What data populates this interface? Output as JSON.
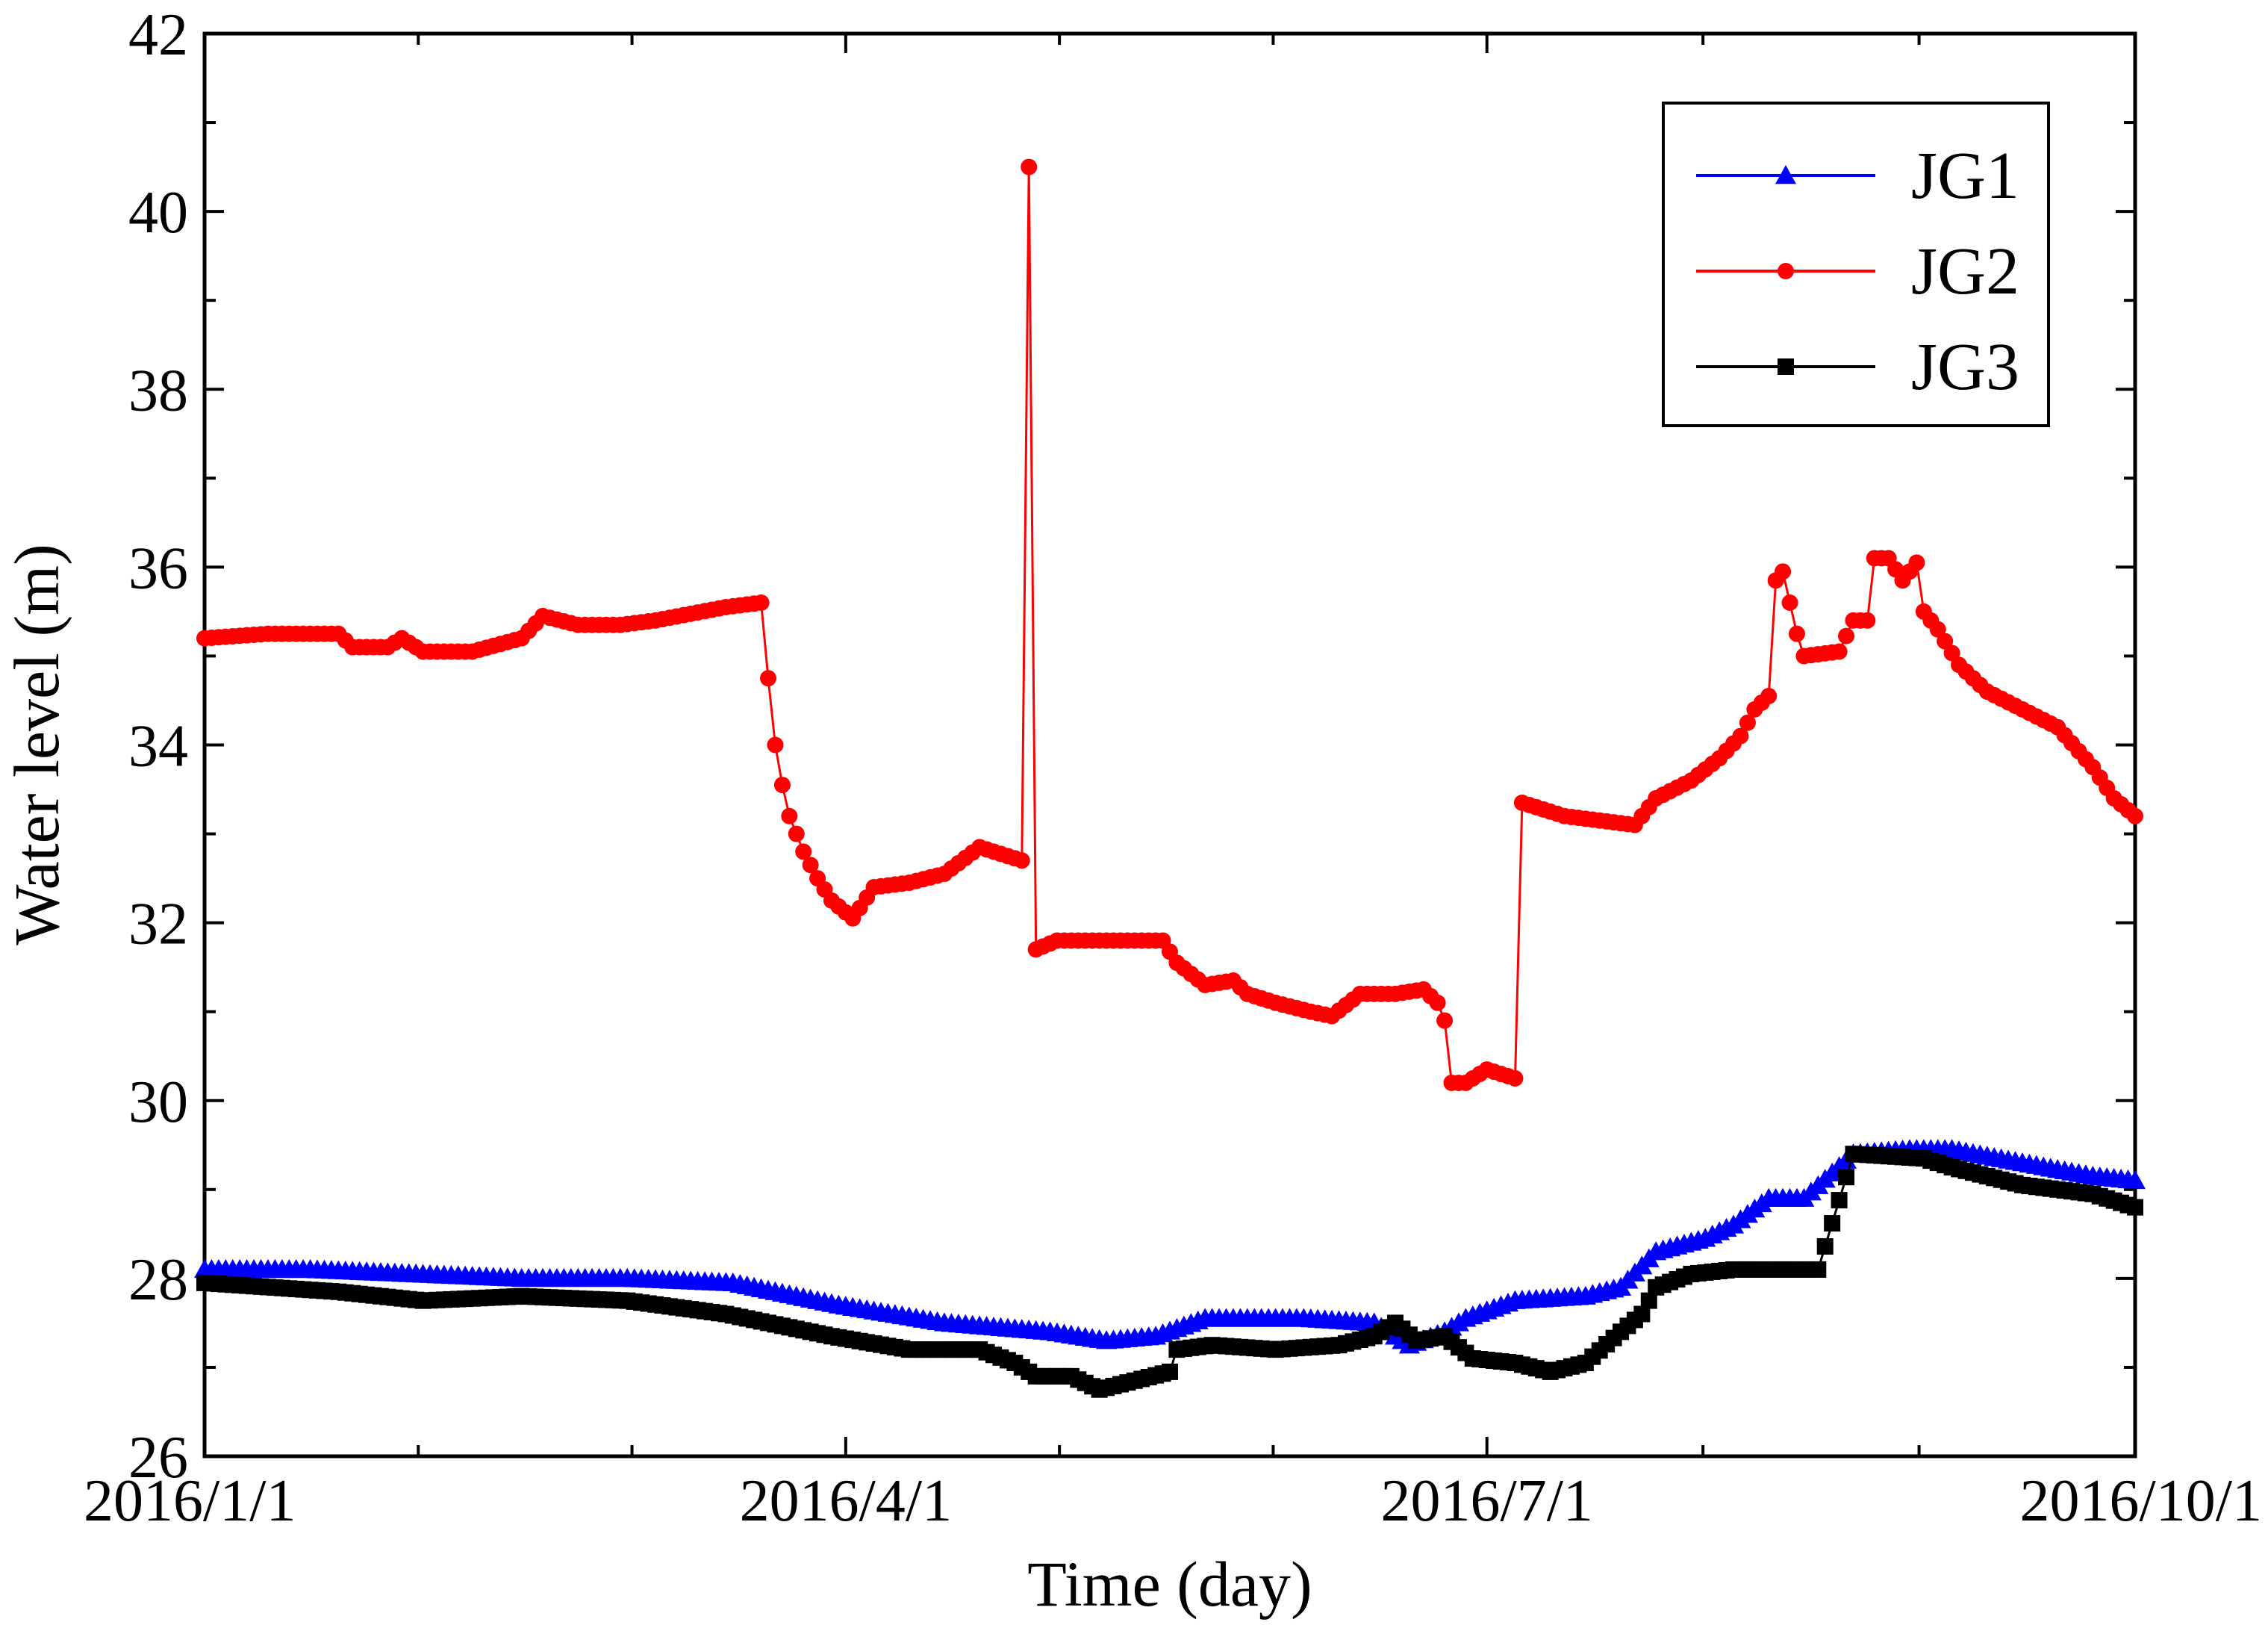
{
  "chart_data": {
    "type": "line",
    "title": "",
    "xlabel": "Time (day)",
    "ylabel": "Water level (m)",
    "x_ticks": [
      "2016/1/1",
      "2016/4/1",
      "2016/7/1",
      "2016/10/1"
    ],
    "xlim": [
      "2016-01-01",
      "2016-10-01"
    ],
    "ylim": [
      26,
      42
    ],
    "y_ticks": [
      "26",
      "28",
      "30",
      "32",
      "34",
      "36",
      "38",
      "40",
      "42"
    ],
    "grid": false,
    "legend_position": "top-right",
    "series": [
      {
        "name": "JG1",
        "color": "#0000ff",
        "marker": "triangle",
        "points": [
          [
            "2016-01-01",
            28.1
          ],
          [
            "2016-01-16",
            28.1
          ],
          [
            "2016-01-31",
            28.05
          ],
          [
            "2016-02-15",
            28.0
          ],
          [
            "2016-03-01",
            28.0
          ],
          [
            "2016-03-16",
            27.95
          ],
          [
            "2016-03-31",
            27.7
          ],
          [
            "2016-04-15",
            27.5
          ],
          [
            "2016-04-30",
            27.4
          ],
          [
            "2016-05-08",
            27.3
          ],
          [
            "2016-05-15",
            27.35
          ],
          [
            "2016-05-22",
            27.55
          ],
          [
            "2016-06-05",
            27.55
          ],
          [
            "2016-06-15",
            27.5
          ],
          [
            "2016-06-20",
            27.25
          ],
          [
            "2016-06-25",
            27.4
          ],
          [
            "2016-06-28",
            27.55
          ],
          [
            "2016-07-05",
            27.75
          ],
          [
            "2016-07-15",
            27.8
          ],
          [
            "2016-07-20",
            27.9
          ],
          [
            "2016-07-25",
            28.3
          ],
          [
            "2016-08-01",
            28.45
          ],
          [
            "2016-08-05",
            28.6
          ],
          [
            "2016-08-10",
            28.9
          ],
          [
            "2016-08-15",
            28.9
          ],
          [
            "2016-08-22",
            29.4
          ],
          [
            "2016-08-30",
            29.45
          ],
          [
            "2016-09-05",
            29.45
          ],
          [
            "2016-09-15",
            29.3
          ],
          [
            "2016-09-25",
            29.15
          ],
          [
            "2016-10-01",
            29.1
          ]
        ]
      },
      {
        "name": "JG2",
        "color": "#ff0000",
        "marker": "circle",
        "points": [
          [
            "2016-01-01",
            35.2
          ],
          [
            "2016-01-10",
            35.25
          ],
          [
            "2016-01-20",
            35.25
          ],
          [
            "2016-01-22",
            35.1
          ],
          [
            "2016-01-27",
            35.1
          ],
          [
            "2016-01-29",
            35.2
          ],
          [
            "2016-02-01",
            35.05
          ],
          [
            "2016-02-08",
            35.05
          ],
          [
            "2016-02-15",
            35.2
          ],
          [
            "2016-02-18",
            35.45
          ],
          [
            "2016-02-23",
            35.35
          ],
          [
            "2016-02-29",
            35.35
          ],
          [
            "2016-03-05",
            35.4
          ],
          [
            "2016-03-15",
            35.55
          ],
          [
            "2016-03-20",
            35.6
          ],
          [
            "2016-03-21",
            34.75
          ],
          [
            "2016-03-22",
            34.0
          ],
          [
            "2016-03-23",
            33.55
          ],
          [
            "2016-03-24",
            33.2
          ],
          [
            "2016-03-26",
            32.8
          ],
          [
            "2016-03-28",
            32.5
          ],
          [
            "2016-03-30",
            32.25
          ],
          [
            "2016-04-02",
            32.05
          ],
          [
            "2016-04-05",
            32.4
          ],
          [
            "2016-04-10",
            32.45
          ],
          [
            "2016-04-15",
            32.55
          ],
          [
            "2016-04-20",
            32.85
          ],
          [
            "2016-04-26",
            32.7
          ],
          [
            "2016-04-27",
            40.5
          ],
          [
            "2016-04-28",
            31.7
          ],
          [
            "2016-05-01",
            31.8
          ],
          [
            "2016-05-10",
            31.8
          ],
          [
            "2016-05-16",
            31.8
          ],
          [
            "2016-05-18",
            31.55
          ],
          [
            "2016-05-22",
            31.3
          ],
          [
            "2016-05-26",
            31.35
          ],
          [
            "2016-05-28",
            31.2
          ],
          [
            "2016-06-01",
            31.1
          ],
          [
            "2016-06-06",
            31.0
          ],
          [
            "2016-06-09",
            30.95
          ],
          [
            "2016-06-13",
            31.2
          ],
          [
            "2016-06-18",
            31.2
          ],
          [
            "2016-06-22",
            31.25
          ],
          [
            "2016-06-24",
            31.1
          ],
          [
            "2016-06-25",
            30.9
          ],
          [
            "2016-06-26",
            30.2
          ],
          [
            "2016-06-28",
            30.2
          ],
          [
            "2016-07-01",
            30.35
          ],
          [
            "2016-07-05",
            30.25
          ],
          [
            "2016-07-06",
            33.35
          ],
          [
            "2016-07-12",
            33.2
          ],
          [
            "2016-07-17",
            33.15
          ],
          [
            "2016-07-22",
            33.1
          ],
          [
            "2016-07-25",
            33.4
          ],
          [
            "2016-07-30",
            33.6
          ],
          [
            "2016-08-03",
            33.85
          ],
          [
            "2016-08-06",
            34.1
          ],
          [
            "2016-08-08",
            34.4
          ],
          [
            "2016-08-10",
            34.55
          ],
          [
            "2016-08-11",
            35.85
          ],
          [
            "2016-08-12",
            35.95
          ],
          [
            "2016-08-13",
            35.6
          ],
          [
            "2016-08-14",
            35.25
          ],
          [
            "2016-08-15",
            35.0
          ],
          [
            "2016-08-20",
            35.05
          ],
          [
            "2016-08-22",
            35.4
          ],
          [
            "2016-08-24",
            35.4
          ],
          [
            "2016-08-25",
            36.1
          ],
          [
            "2016-08-27",
            36.1
          ],
          [
            "2016-08-29",
            35.85
          ],
          [
            "2016-08-31",
            36.05
          ],
          [
            "2016-09-01",
            35.5
          ],
          [
            "2016-09-03",
            35.3
          ],
          [
            "2016-09-06",
            34.9
          ],
          [
            "2016-09-10",
            34.6
          ],
          [
            "2016-09-15",
            34.4
          ],
          [
            "2016-09-20",
            34.2
          ],
          [
            "2016-09-25",
            33.75
          ],
          [
            "2016-09-28",
            33.4
          ],
          [
            "2016-10-01",
            33.2
          ]
        ]
      },
      {
        "name": "JG3",
        "color": "#000000",
        "marker": "square",
        "points": [
          [
            "2016-01-01",
            27.95
          ],
          [
            "2016-01-20",
            27.85
          ],
          [
            "2016-02-01",
            27.75
          ],
          [
            "2016-02-15",
            27.8
          ],
          [
            "2016-03-01",
            27.75
          ],
          [
            "2016-03-15",
            27.6
          ],
          [
            "2016-03-30",
            27.35
          ],
          [
            "2016-04-10",
            27.2
          ],
          [
            "2016-04-20",
            27.2
          ],
          [
            "2016-04-25",
            27.05
          ],
          [
            "2016-04-28",
            26.9
          ],
          [
            "2016-05-03",
            26.9
          ],
          [
            "2016-05-07",
            26.75
          ],
          [
            "2016-05-12",
            26.85
          ],
          [
            "2016-05-17",
            26.95
          ],
          [
            "2016-05-18",
            27.2
          ],
          [
            "2016-05-23",
            27.25
          ],
          [
            "2016-06-01",
            27.2
          ],
          [
            "2016-06-10",
            27.25
          ],
          [
            "2016-06-15",
            27.35
          ],
          [
            "2016-06-18",
            27.5
          ],
          [
            "2016-06-21",
            27.3
          ],
          [
            "2016-06-25",
            27.35
          ],
          [
            "2016-06-29",
            27.1
          ],
          [
            "2016-07-05",
            27.05
          ],
          [
            "2016-07-10",
            26.95
          ],
          [
            "2016-07-15",
            27.05
          ],
          [
            "2016-07-20",
            27.4
          ],
          [
            "2016-07-23",
            27.6
          ],
          [
            "2016-07-25",
            27.9
          ],
          [
            "2016-07-30",
            28.05
          ],
          [
            "2016-08-05",
            28.1
          ],
          [
            "2016-08-17",
            28.1
          ],
          [
            "2016-08-22",
            29.4
          ],
          [
            "2016-09-01",
            29.35
          ],
          [
            "2016-09-05",
            29.25
          ],
          [
            "2016-09-15",
            29.05
          ],
          [
            "2016-09-25",
            28.95
          ],
          [
            "2016-10-01",
            28.8
          ]
        ]
      }
    ]
  }
}
